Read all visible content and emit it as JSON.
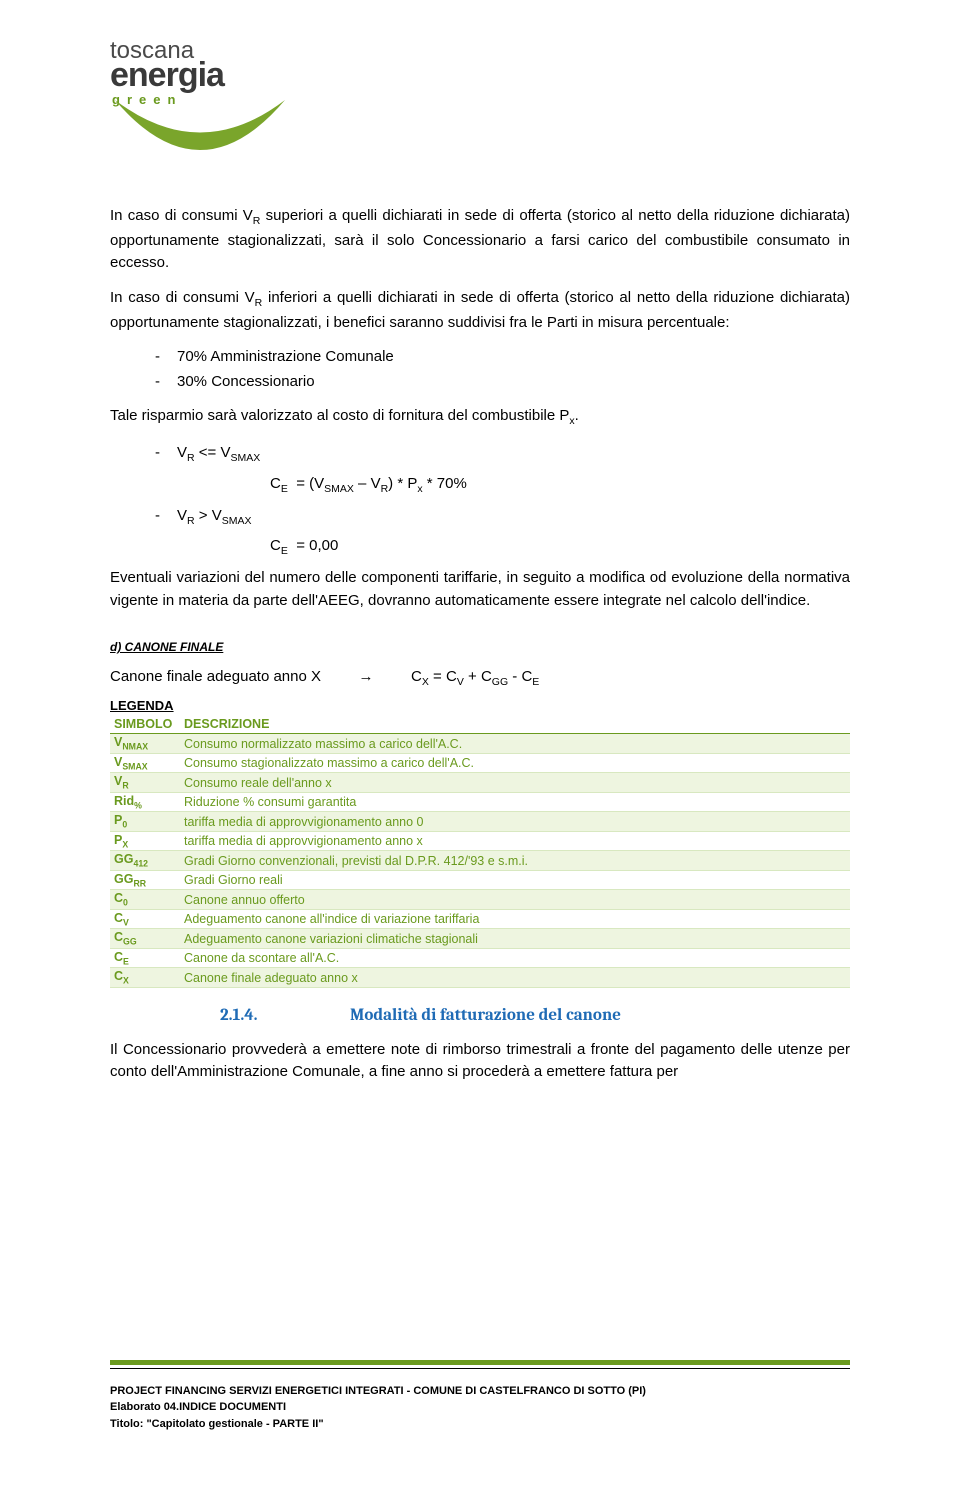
{
  "logo": {
    "top": "toscana",
    "main": "energia",
    "green": "green",
    "arc_color": "#7aa52b"
  },
  "para1": "In caso di consumi VR superiori a quelli dichiarati in sede di offerta (storico al netto della riduzione dichiarata) opportunamente stagionalizzati, sarà il solo Concessionario a farsi carico del combustibile consumato in eccesso.",
  "para2": "In caso di consumi VR inferiori a quelli dichiarati in sede di offerta (storico al netto della riduzione dichiarata) opportunamente stagionalizzati, i benefici saranno suddivisi fra le Parti in misura percentuale:",
  "split": {
    "a": "70% Amministrazione Comunale",
    "b": "30% Concessionario"
  },
  "para3": "Tale risparmio sarà valorizzato al costo di fornitura del combustibile Px.",
  "case1": {
    "cond": "VR <= VSMAX",
    "formula": "CE  = (VSMAX – VR) * Px * 70%"
  },
  "case2": {
    "cond": "VR > VSMAX",
    "formula": "CE  = 0,00"
  },
  "para4": "Eventuali variazioni del numero delle componenti tariffarie, in seguito a modifica od evoluzione della normativa vigente in materia da parte dell'AEEG, dovranno automaticamente essere integrate nel calcolo dell'indice.",
  "section_d": "d)   CANONE FINALE",
  "canone_line_left": "Canone finale adeguato anno X",
  "canone_line_right": "CX = CV + CGG - CE",
  "legenda_title": "LEGENDA",
  "legenda_headers": {
    "sym": "SIMBOLO",
    "desc": "DESCRIZIONE"
  },
  "legenda_rows": [
    {
      "sym": "VNMAX",
      "desc": "Consumo normalizzato massimo a carico dell'A.C."
    },
    {
      "sym": "VSMAX",
      "desc": "Consumo stagionalizzato massimo a carico dell'A.C."
    },
    {
      "sym": "VR",
      "desc": "Consumo reale dell'anno x"
    },
    {
      "sym": "Rid%",
      "desc": "Riduzione % consumi garantita"
    },
    {
      "sym": "P0",
      "desc": "tariffa media di approvvigionamento anno 0"
    },
    {
      "sym": "PX",
      "desc": "tariffa media di approvvigionamento anno x"
    },
    {
      "sym": "GG412",
      "desc": "Gradi Giorno convenzionali, previsti dal D.P.R. 412/'93 e s.m.i."
    },
    {
      "sym": "GGRR",
      "desc": "Gradi Giorno reali"
    },
    {
      "sym": "C0",
      "desc": "Canone annuo offerto"
    },
    {
      "sym": "CV",
      "desc": "Adeguamento canone all'indice di variazione tariffaria"
    },
    {
      "sym": "CGG",
      "desc": "Adeguamento canone variazioni climatiche stagionali"
    },
    {
      "sym": "CE",
      "desc": "Canone da scontare all'A.C."
    },
    {
      "sym": "CX",
      "desc": "Canone finale adeguato anno x"
    }
  ],
  "heading_214": {
    "num": "2.1.4.",
    "title": "Modalità di fatturazione del canone"
  },
  "para5": "Il Concessionario provvederà a emettere note di rimborso trimestrali a fronte del pagamento delle utenze per conto dell'Amministrazione Comunale, a fine anno si procederà a emettere fattura per",
  "footer": {
    "line1": "PROJECT FINANCING SERVIZI ENERGETICI INTEGRATI - COMUNE DI CASTELFRANCO DI SOTTO (PI)",
    "line2": "Elaborato 04.INDICE  DOCUMENTI",
    "line3": "Titolo: \"Capitolato gestionale - PARTE II\""
  },
  "colors": {
    "green": "#6a9a1e",
    "blue": "#1f6bb5",
    "row_alt": "#eef5e0"
  }
}
